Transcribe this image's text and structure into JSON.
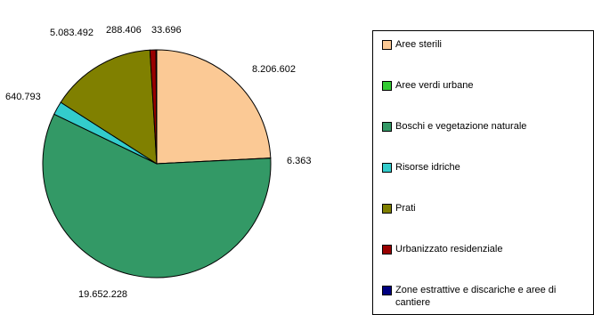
{
  "chart_data": {
    "type": "pie",
    "title": "",
    "series": [
      {
        "name": "Aree sterili",
        "value": 8206602,
        "label": "8.206.602",
        "color": "#fbc995"
      },
      {
        "name": "Aree verdi urbane",
        "value": 6363,
        "label": "6.363",
        "color": "#33cc33"
      },
      {
        "name": "Boschi e vegetazione naturale",
        "value": 19652228,
        "label": "19.652.228",
        "color": "#339966"
      },
      {
        "name": "Risorse idriche",
        "value": 640793,
        "label": "640.793",
        "color": "#33cccc"
      },
      {
        "name": "Prati",
        "value": 5083492,
        "label": "5.083.492",
        "color": "#808000"
      },
      {
        "name": "Urbanizzato residenziale",
        "value": 288406,
        "label": "288.406",
        "color": "#990000"
      },
      {
        "name": "Zone estrattive e discariche e aree di cantiere",
        "value": 33696,
        "label": "33.696",
        "color": "#000080"
      }
    ],
    "legend_position": "right",
    "start_angle": "top, clockwise"
  },
  "legend": {
    "items": [
      "Aree sterili",
      "Aree verdi urbane",
      "Boschi e vegetazione naturale",
      "Risorse idriche",
      "Prati",
      "Urbanizzato residenziale",
      "Zone estrattive e discariche e aree di cantiere"
    ]
  }
}
